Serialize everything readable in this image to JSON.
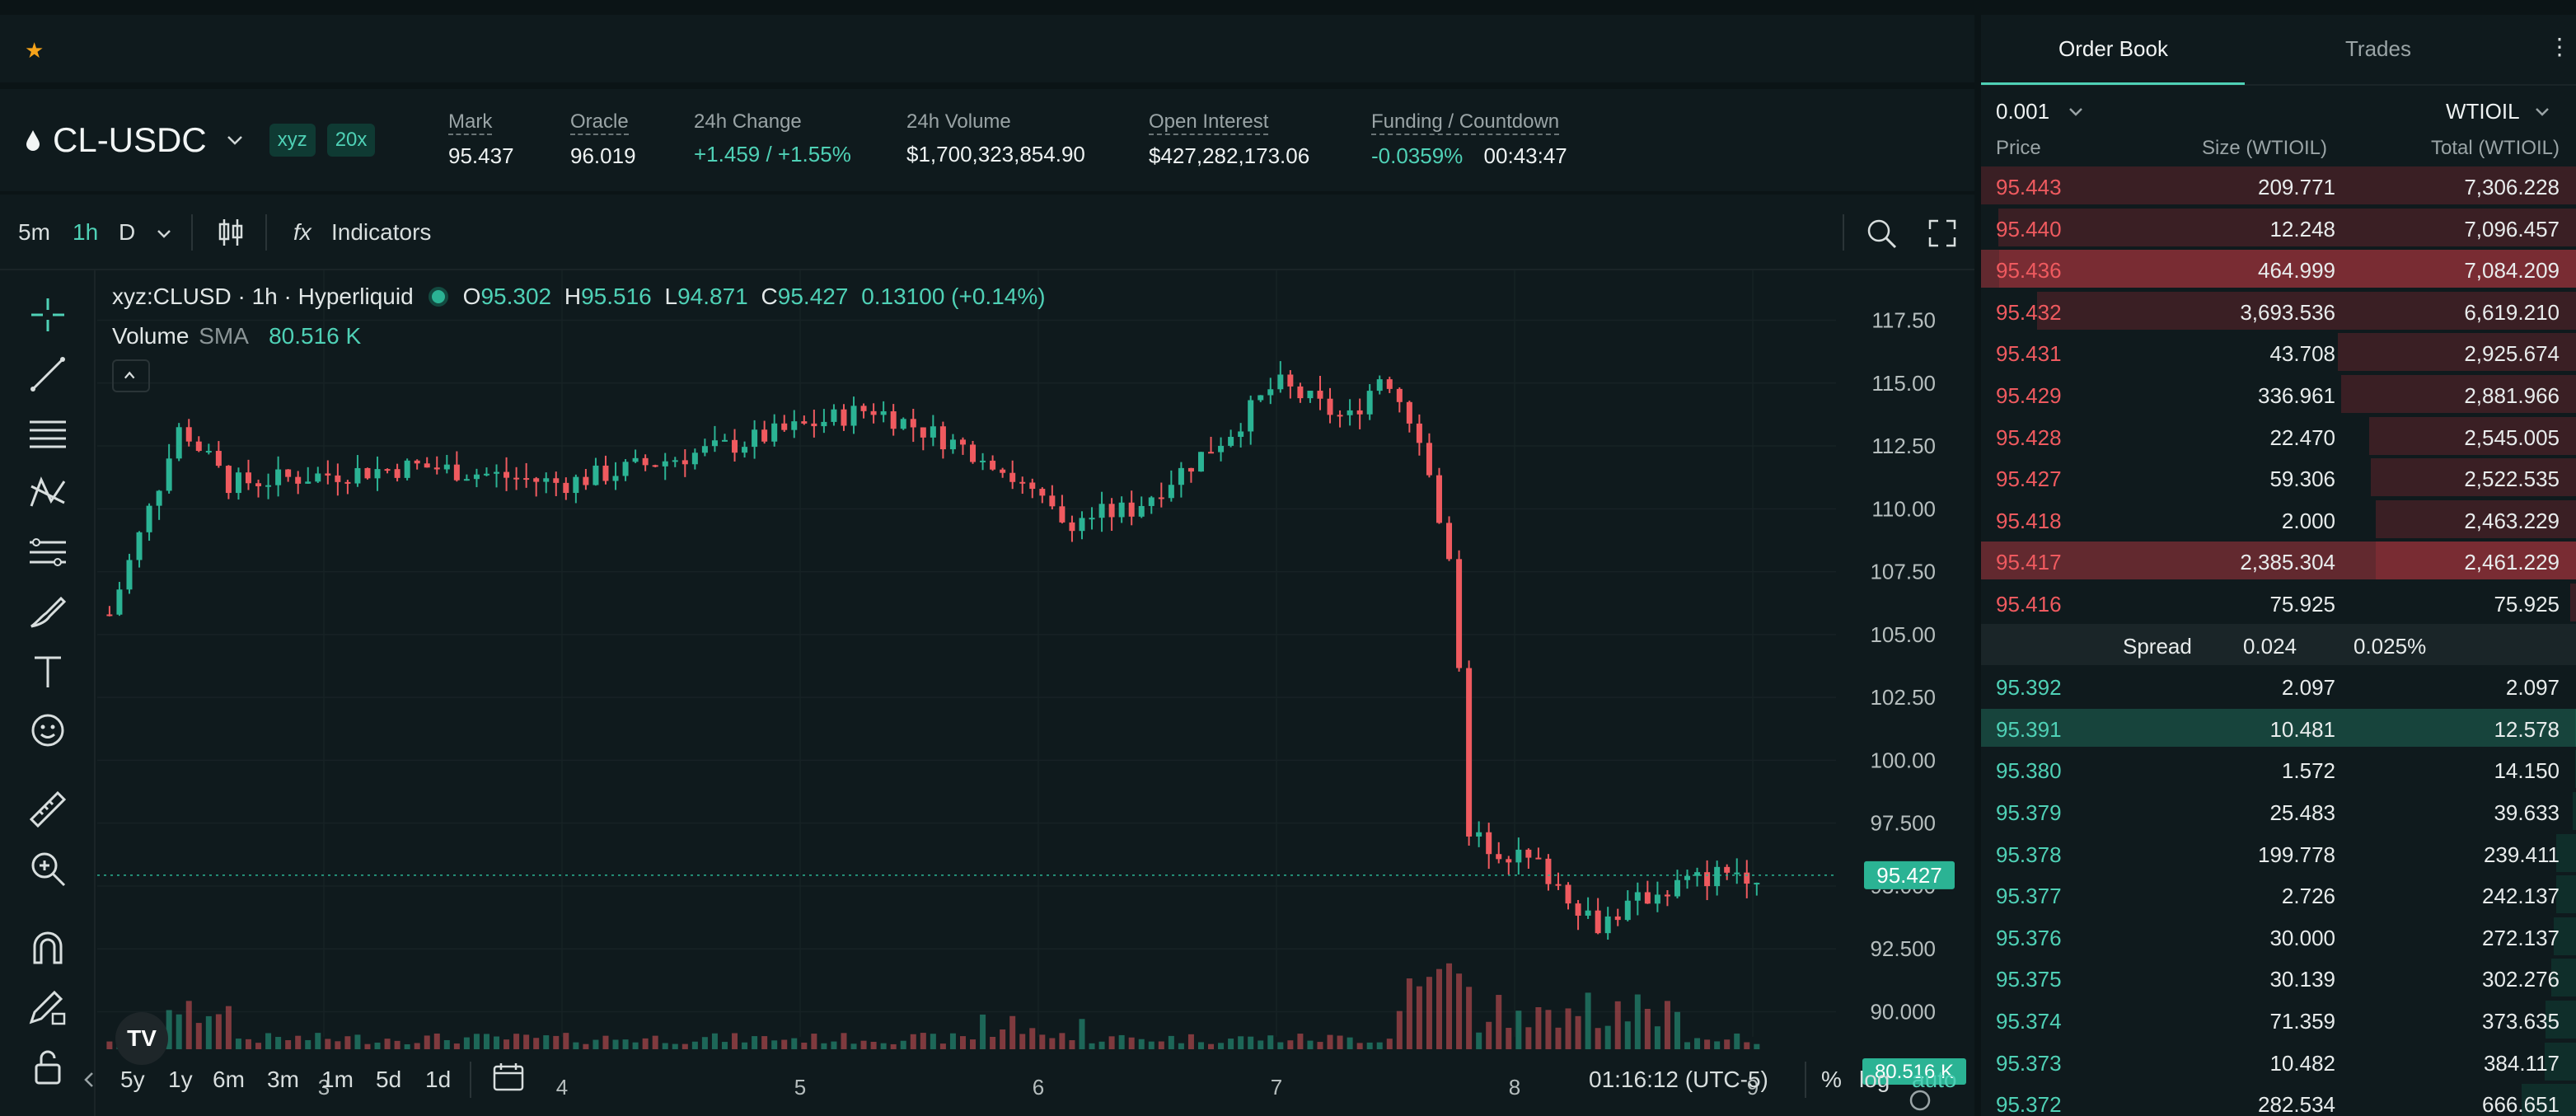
{
  "header": {
    "symbol": "CL-USDC",
    "badges": [
      "xyz",
      "20x"
    ],
    "stats": [
      {
        "label": "Mark",
        "value": "95.437",
        "dashed": true
      },
      {
        "label": "Oracle",
        "value": "96.019",
        "dashed": true
      },
      {
        "label": "24h Change",
        "value": "+1.459 / +1.55%",
        "dashed": false,
        "color": "green"
      },
      {
        "label": "24h Volume",
        "value": "$1,700,323,854.90",
        "dashed": false
      },
      {
        "label": "Open Interest",
        "value": "$427,282,173.06",
        "dashed": true
      },
      {
        "label": "Funding / Countdown",
        "value": "-0.0359%",
        "value2": "00:43:47",
        "dashed": true
      }
    ]
  },
  "toolbar": {
    "intervals": [
      "5m",
      "1h",
      "D"
    ],
    "active_interval": "1h",
    "indicators_label": "Indicators",
    "fx_label": "fx"
  },
  "legend": {
    "title": "xyz:CLUSD · 1h · Hyperliquid",
    "o_label": "O",
    "o": "95.302",
    "h_label": "H",
    "h": "95.516",
    "l_label": "L",
    "l": "94.871",
    "c_label": "C",
    "c": "95.427",
    "change": "0.13100 (+0.14%)",
    "volume_label": "Volume",
    "sma_label": "SMA",
    "sma_value": "80.516 K"
  },
  "chart_data": {
    "type": "candlestick",
    "price_axis": [
      "117.50",
      "115.00",
      "112.50",
      "110.00",
      "107.50",
      "105.00",
      "102.50",
      "100.00",
      "97.500",
      "95.000",
      "92.500",
      "90.000"
    ],
    "ylim": [
      89.0,
      118.5
    ],
    "x_ticks": [
      "3",
      "4",
      "5",
      "6",
      "7",
      "8",
      "9"
    ],
    "last_price_label": "95.427",
    "volume_label": "80.516 K",
    "key_points": [
      {
        "day": 2.1,
        "price": 105.8
      },
      {
        "day": 2.4,
        "price": 113.3
      },
      {
        "day": 2.6,
        "price": 111.0
      },
      {
        "day": 3.4,
        "price": 111.7
      },
      {
        "day": 4.0,
        "price": 111.0
      },
      {
        "day": 4.7,
        "price": 112.5
      },
      {
        "day": 5.3,
        "price": 114.0
      },
      {
        "day": 5.8,
        "price": 112.0
      },
      {
        "day": 6.1,
        "price": 109.5
      },
      {
        "day": 6.4,
        "price": 110.0
      },
      {
        "day": 6.8,
        "price": 113.0
      },
      {
        "day": 7.0,
        "price": 115.0
      },
      {
        "day": 7.3,
        "price": 113.5
      },
      {
        "day": 7.45,
        "price": 115.5
      },
      {
        "day": 7.6,
        "price": 113.0
      },
      {
        "day": 7.75,
        "price": 107.0
      },
      {
        "day": 7.8,
        "price": 97.0
      },
      {
        "day": 8.1,
        "price": 95.8
      },
      {
        "day": 8.35,
        "price": 93.5
      },
      {
        "day": 8.6,
        "price": 94.8
      },
      {
        "day": 8.9,
        "price": 95.6
      },
      {
        "day": 9.05,
        "price": 95.427
      }
    ]
  },
  "bottom_bar": {
    "ranges": [
      "5y",
      "1y",
      "6m",
      "3m",
      "1m",
      "5d",
      "1d"
    ],
    "time": "01:16:12 (UTC-5)",
    "percent": "%",
    "log": "log",
    "auto": "auto"
  },
  "orderbook": {
    "tabs": [
      "Order Book",
      "Trades"
    ],
    "tick": "0.001",
    "asset": "WTIOIL",
    "headers": [
      "Price",
      "Size (WTIOIL)",
      "Total (WTIOIL)"
    ],
    "asks": [
      {
        "price": "95.443",
        "size": "209.771",
        "total": "7,306.228"
      },
      {
        "price": "95.440",
        "size": "12.248",
        "total": "7,096.457"
      },
      {
        "price": "95.436",
        "size": "464.999",
        "total": "7,084.209"
      },
      {
        "price": "95.432",
        "size": "3,693.536",
        "total": "6,619.210"
      },
      {
        "price": "95.431",
        "size": "43.708",
        "total": "2,925.674"
      },
      {
        "price": "95.429",
        "size": "336.961",
        "total": "2,881.966"
      },
      {
        "price": "95.428",
        "size": "22.470",
        "total": "2,545.005"
      },
      {
        "price": "95.427",
        "size": "59.306",
        "total": "2,522.535"
      },
      {
        "price": "95.418",
        "size": "2.000",
        "total": "2,463.229"
      },
      {
        "price": "95.417",
        "size": "2,385.304",
        "total": "2,461.229"
      },
      {
        "price": "95.416",
        "size": "75.925",
        "total": "75.925"
      }
    ],
    "spread_label": "Spread",
    "spread_value": "0.024",
    "spread_pct": "0.025%",
    "bids": [
      {
        "price": "95.392",
        "size": "2.097",
        "total": "2.097"
      },
      {
        "price": "95.391",
        "size": "10.481",
        "total": "12.578"
      },
      {
        "price": "95.380",
        "size": "1.572",
        "total": "14.150"
      },
      {
        "price": "95.379",
        "size": "25.483",
        "total": "39.633"
      },
      {
        "price": "95.378",
        "size": "199.778",
        "total": "239.411"
      },
      {
        "price": "95.377",
        "size": "2.726",
        "total": "242.137"
      },
      {
        "price": "95.376",
        "size": "30.000",
        "total": "272.137"
      },
      {
        "price": "95.375",
        "size": "30.139",
        "total": "302.276"
      },
      {
        "price": "95.374",
        "size": "71.359",
        "total": "373.635"
      },
      {
        "price": "95.373",
        "size": "10.482",
        "total": "384.117"
      },
      {
        "price": "95.372",
        "size": "282.534",
        "total": "666.651"
      }
    ]
  },
  "colors": {
    "green": "#4fd1b6",
    "red": "#ef5a5f",
    "bg": "#0f1a1d",
    "star": "#f6a31a"
  }
}
